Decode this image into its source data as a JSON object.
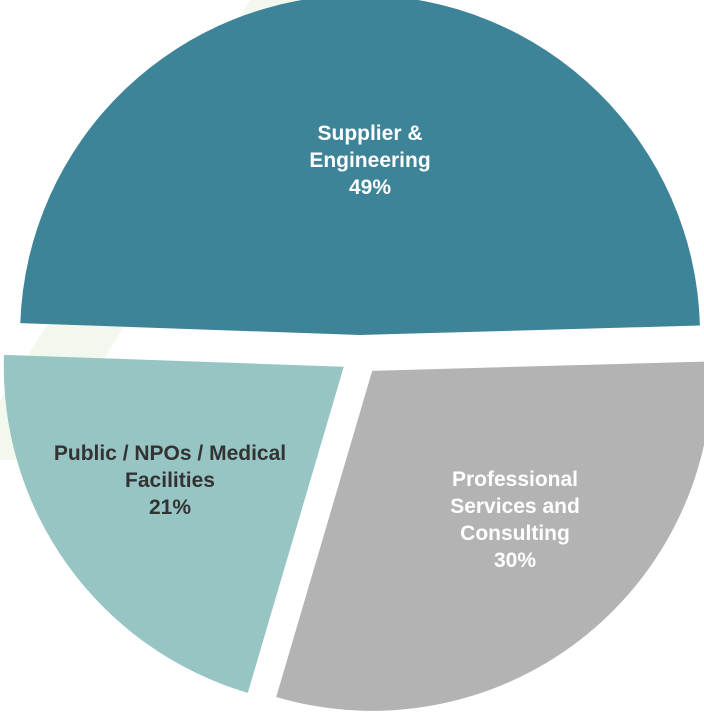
{
  "chart_data": {
    "type": "pie",
    "categories": [
      "Supplier & Engineering",
      "Professional Services and Consulting",
      "Public / NPOs / Medical Facilities"
    ],
    "values": [
      49,
      30,
      21
    ],
    "value_labels": [
      "49%",
      "30%",
      "21%"
    ],
    "colors": [
      "#3d8499",
      "#b3b3b3",
      "#97c5c4"
    ]
  }
}
